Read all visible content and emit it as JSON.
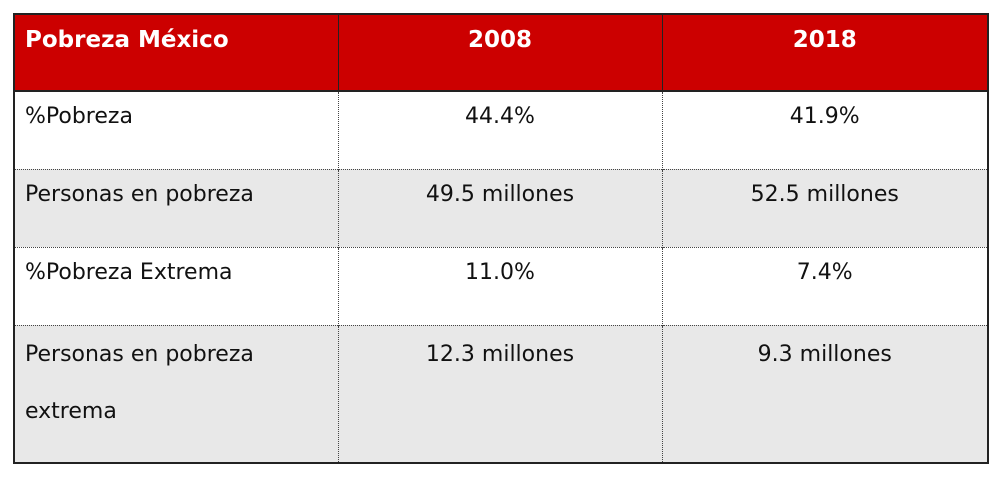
{
  "table": {
    "header": {
      "label": "Pobreza México",
      "years": [
        "2008",
        "2018"
      ]
    },
    "rows": [
      {
        "label": "%Pobreza",
        "values": [
          "44.4%",
          "41.9%"
        ]
      },
      {
        "label": "Personas en pobreza",
        "values": [
          "49.5 millones",
          "52.5 millones"
        ]
      },
      {
        "label": "%Pobreza Extrema",
        "values": [
          "11.0%",
          "7.4%"
        ]
      },
      {
        "label": "Personas en pobreza extrema",
        "values": [
          "12.3 millones",
          "9.3 millones"
        ]
      }
    ]
  },
  "colors": {
    "header_bg": "#cc0000",
    "header_text": "#ffffff",
    "stripe_bg": "#e8e8e8"
  }
}
